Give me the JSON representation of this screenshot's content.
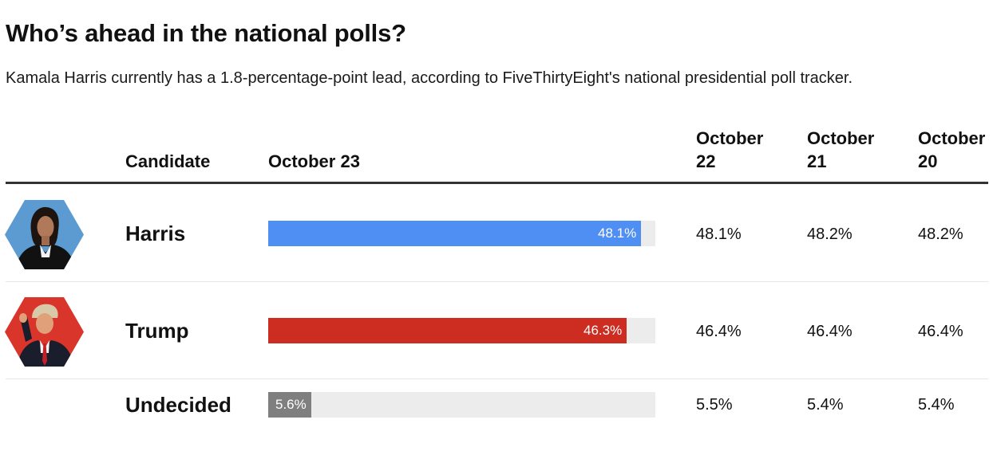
{
  "title": "Who’s ahead in the national polls?",
  "subtitle": "Kamala Harris currently has a 1.8-percentage-point lead, according to FiveThirtyEight's national presidential poll tracker.",
  "chart_data": {
    "type": "bar",
    "title": "Who’s ahead in the national polls?",
    "subtitle": "Kamala Harris currently has a 1.8-percentage-point lead, according to FiveThirtyEight's national presidential poll tracker.",
    "columns": {
      "candidate": "Candidate",
      "current": "October 23",
      "prev1": "October 22",
      "prev2": "October 21",
      "prev3": "October 20"
    },
    "xlim": [
      0,
      50
    ],
    "unit": "%",
    "rows": [
      {
        "name": "Harris",
        "avatar": "harris-portrait",
        "color": "#4f8ef2",
        "current": 48.1,
        "current_label": "48.1%",
        "prev1": "48.1%",
        "prev2": "48.2%",
        "prev3": "48.2%"
      },
      {
        "name": "Trump",
        "avatar": "trump-portrait",
        "color": "#cd2c20",
        "current": 46.3,
        "current_label": "46.3%",
        "prev1": "46.4%",
        "prev2": "46.4%",
        "prev3": "46.4%"
      },
      {
        "name": "Undecided",
        "avatar": null,
        "color": "#7f7f7f",
        "current": 5.6,
        "current_label": "5.6%",
        "prev1": "5.5%",
        "prev2": "5.4%",
        "prev3": "5.4%"
      }
    ]
  },
  "colors": {
    "harris_bg": "#5b9bd1",
    "trump_bg": "#d9352a",
    "track": "#ececec"
  }
}
